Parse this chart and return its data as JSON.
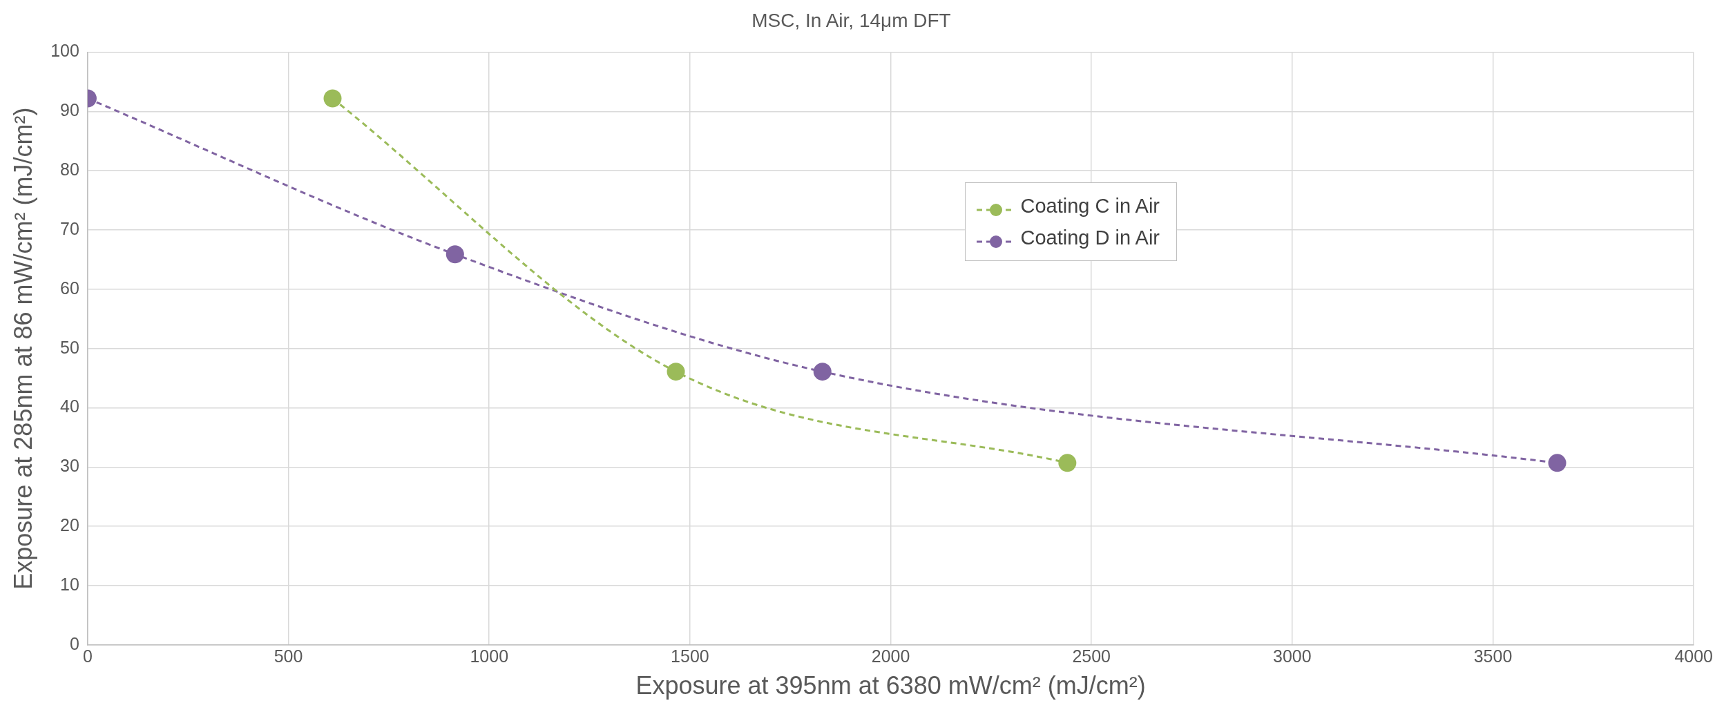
{
  "chart_data": {
    "type": "line",
    "title": "MSC, In Air, 14μm DFT",
    "xlabel": "Exposure at 395nm at 6380 mW/cm² (mJ/cm²)",
    "ylabel": "Exposure at 285nm at 86 mW/cm² (mJ/cm²)",
    "series": [
      {
        "name": "Coating C in Air",
        "color": "#9bbb59",
        "x": [
          610,
          1465,
          2440
        ],
        "values": [
          92.2,
          46.1,
          30.7
        ]
      },
      {
        "name": "Coating D in Air",
        "color": "#8064a2",
        "x": [
          0,
          915,
          1830,
          3660
        ],
        "values": [
          92.2,
          65.9,
          46.1,
          30.7
        ]
      }
    ],
    "xlim": [
      0,
      4000
    ],
    "xticks": [
      0,
      500,
      1000,
      1500,
      2000,
      2500,
      3000,
      3500,
      4000
    ],
    "ylim": [
      0,
      100
    ],
    "yticks": [
      0,
      10,
      20,
      30,
      40,
      50,
      60,
      70,
      80,
      90,
      100
    ],
    "grid": true,
    "legend": "right",
    "marker": "circle",
    "line_style": "dashed"
  }
}
